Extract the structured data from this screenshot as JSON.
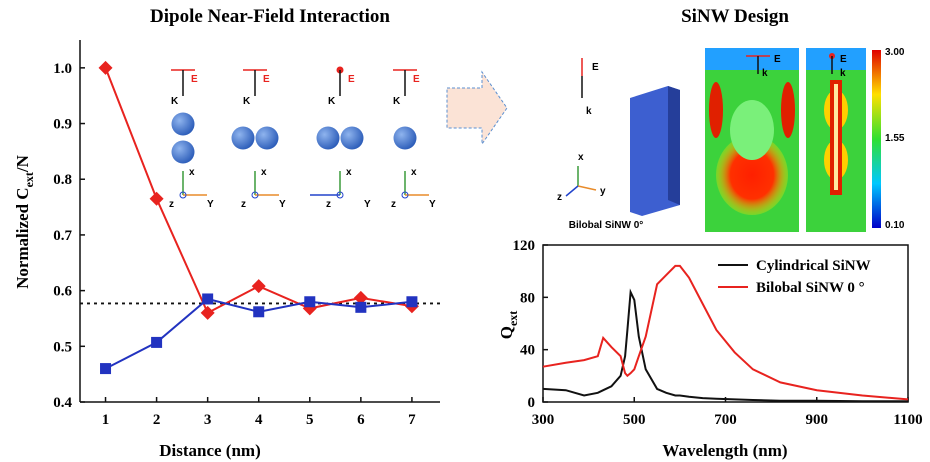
{
  "chart_data": [
    {
      "type": "line",
      "title": "Dipole Near-Field Interaction",
      "x_label": "Distance (nm)",
      "y_label": [
        "Normalized C",
        "ext",
        "/N"
      ],
      "x": [
        1,
        2,
        3,
        4,
        5,
        6,
        7
      ],
      "series": [
        {
          "name": null,
          "color": "#e8231f",
          "marker": "diamond",
          "values": [
            1.0,
            0.765,
            0.56,
            0.608,
            0.568,
            0.587,
            0.572
          ]
        },
        {
          "name": null,
          "color": "#2233c0",
          "marker": "square",
          "values": [
            0.46,
            0.507,
            0.585,
            0.562,
            0.58,
            0.57,
            0.58
          ]
        }
      ],
      "reference_line": 0.577,
      "xlim": [
        0.5,
        7.55
      ],
      "ylim": [
        0.4,
        1.05
      ],
      "xticks": [
        1,
        2,
        3,
        4,
        5,
        6,
        7
      ],
      "yticks": [
        0.4,
        0.5,
        0.6,
        0.7,
        0.8,
        0.9,
        {
          "value": 1,
          "label": "1.0"
        }
      ]
    },
    {
      "type": "line",
      "x_label": "Wavelength (nm)",
      "y_label": [
        "Q",
        "ext"
      ],
      "legend": "upper right",
      "x": [
        300,
        350,
        390,
        420,
        432,
        450,
        470,
        480,
        485,
        492,
        500,
        510,
        525,
        550,
        570,
        590,
        600,
        620,
        650,
        680,
        720,
        760,
        820,
        900,
        1000,
        1100
      ],
      "series": [
        {
          "name": "Cylindrical SiNW",
          "color": "#111111",
          "values": [
            10,
            9,
            5,
            7,
            9,
            12,
            20,
            35,
            55,
            84,
            78,
            50,
            25,
            10,
            7,
            5,
            5,
            4,
            3,
            2.5,
            2,
            1.5,
            1,
            1,
            0.5,
            0.5
          ]
        },
        {
          "name": "Bilobal SiNW 0 °",
          "color": "#e8231f",
          "values": [
            27,
            30,
            32,
            35,
            49,
            42,
            35,
            22,
            20,
            22,
            25,
            35,
            50,
            90,
            97,
            104,
            104,
            95,
            75,
            55,
            38,
            25,
            15,
            9,
            5,
            2
          ]
        }
      ],
      "xlim": [
        300,
        1100
      ],
      "ylim": [
        0,
        120
      ],
      "xticks": [
        300,
        500,
        700,
        900,
        1100
      ],
      "yticks": [
        0,
        40,
        80,
        120
      ]
    }
  ],
  "insets": [
    {
      "field": "E",
      "wave": "K",
      "axes": [
        "x",
        "z",
        "Y"
      ]
    },
    {
      "field": "E",
      "wave": "K",
      "axes": [
        "x",
        "z",
        "Y"
      ]
    },
    {
      "field": "E",
      "wave": "K",
      "axes": [
        "x",
        "z",
        "Y"
      ]
    },
    {
      "field": "E",
      "wave": "K",
      "axes": [
        "x",
        "z",
        "Y"
      ]
    }
  ],
  "design": {
    "title": "SiNW Design",
    "field": "E",
    "wave": "k",
    "axes": [
      "x",
      "z",
      "y"
    ],
    "caption": "Bilobal SiNW 0°",
    "maps": [
      {
        "field": "E",
        "wave": "k"
      },
      {
        "field": "E",
        "wave": "k"
      }
    ],
    "colorbar": [
      "3.00",
      "1.55",
      "0.10"
    ]
  }
}
